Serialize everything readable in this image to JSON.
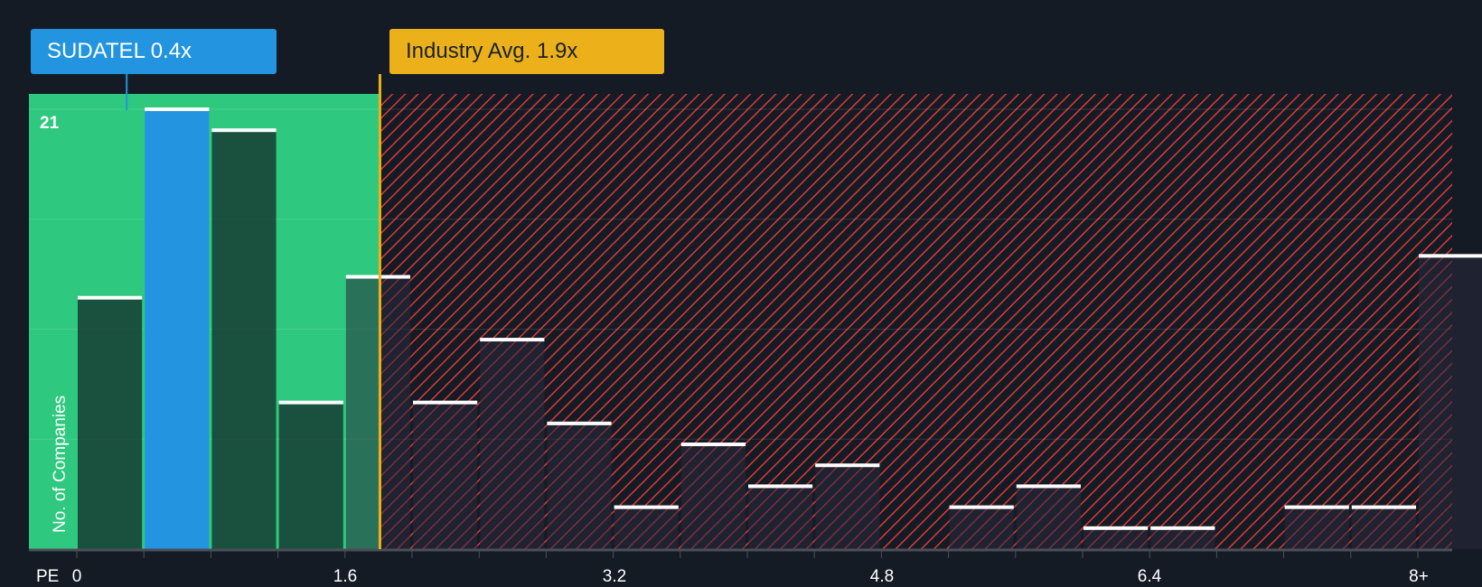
{
  "chart_data": {
    "type": "bar",
    "title": "",
    "xlabel": "PE",
    "ylabel": "No. of Companies",
    "bin_width": 0.4,
    "x_ticks": [
      "0",
      "1.6",
      "3.2",
      "4.8",
      "6.4",
      "8+"
    ],
    "y_ticks": [
      "21"
    ],
    "ylim": [
      0,
      21
    ],
    "values": [
      12,
      21,
      20,
      7,
      13,
      7,
      10,
      6,
      2,
      5,
      3,
      4,
      0,
      2,
      3,
      1,
      1,
      0,
      2,
      2,
      14
    ],
    "highlight_bin": 1,
    "company": {
      "label": "SUDATEL 0.4x",
      "value": 0.4
    },
    "industry": {
      "label": "Industry Avg. 1.9x",
      "value": 1.9
    },
    "colors": {
      "company": "#2394df",
      "industry": "#ecb11a",
      "below": "#2ec97f",
      "above": "#e03b3b",
      "bg": "#151b24"
    }
  }
}
